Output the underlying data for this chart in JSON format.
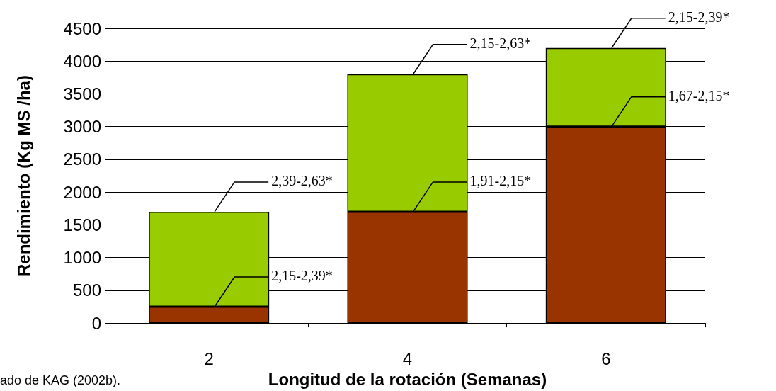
{
  "chart_data": {
    "type": "bar",
    "stacked": true,
    "xlabel": "Longitud de la rotación (Semanas)",
    "ylabel": "Rendimiento (Kg MS /ha)",
    "categories": [
      "2",
      "4",
      "6"
    ],
    "series": [
      {
        "color": "#993300",
        "values": [
          250,
          1700,
          3000
        ]
      },
      {
        "color": "#99cc00",
        "values": [
          1450,
          2100,
          1200
        ]
      }
    ],
    "ylim": [
      0,
      4500
    ],
    "yticks": [
      0,
      500,
      1000,
      1500,
      2000,
      2500,
      3000,
      3500,
      4000,
      4500
    ],
    "grid": "y",
    "annotations": [
      {
        "text": "2,15-2,39*",
        "x": "2",
        "y": 250
      },
      {
        "text": "2,39-2,63*",
        "x": "2",
        "y": 1700
      },
      {
        "text": "1,91-2,15*",
        "x": "4",
        "y": 1700
      },
      {
        "text": "2,15-2,63*",
        "x": "4",
        "y": 3800
      },
      {
        "text": "1,67-2,15*",
        "x": "6",
        "y": 3000
      },
      {
        "text": "2,15-2,39*",
        "x": "6",
        "y": 4200
      },
      "ado de KAG (2002b)."
    ]
  }
}
